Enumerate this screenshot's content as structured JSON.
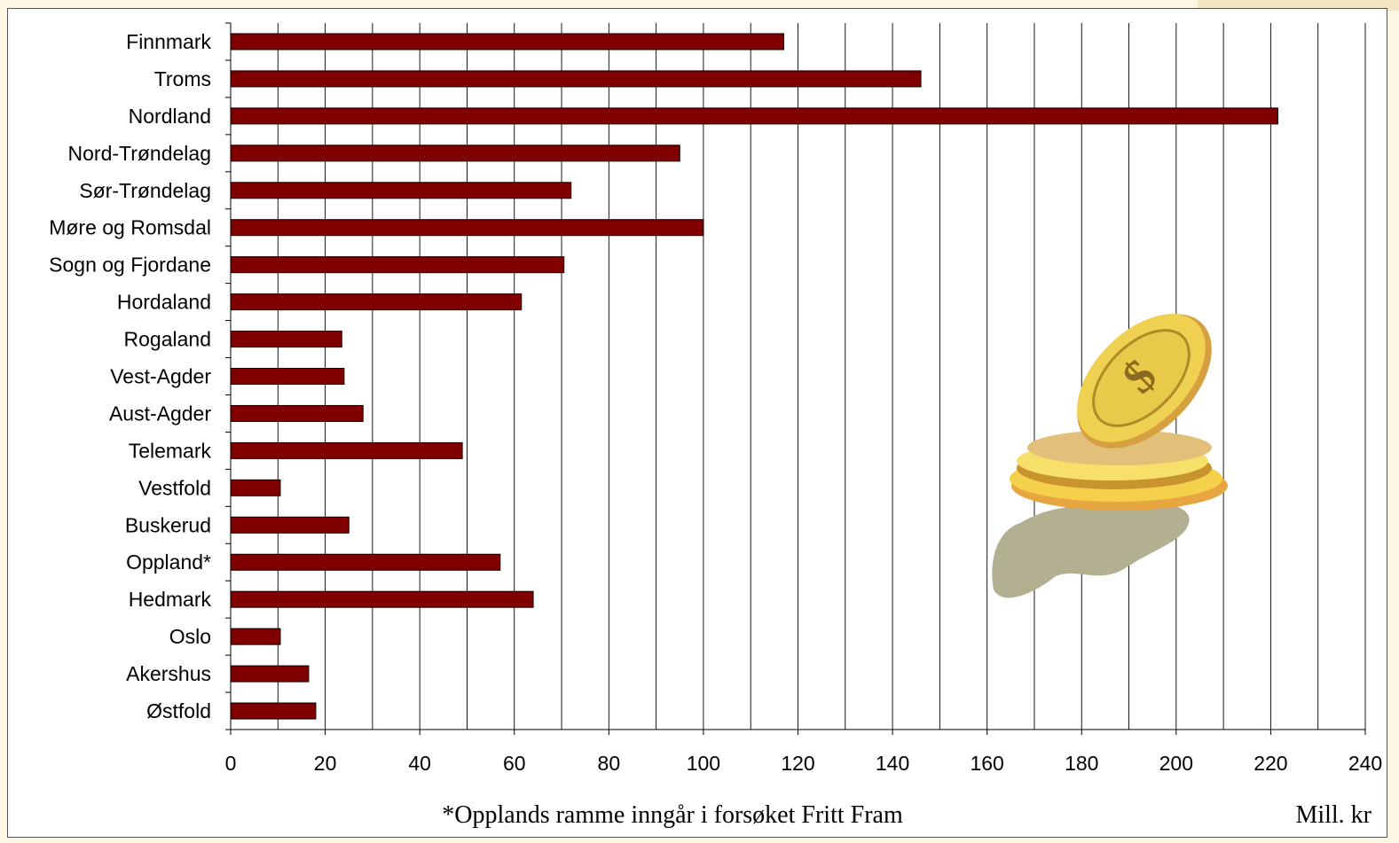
{
  "chart_data": {
    "type": "bar",
    "orientation": "horizontal",
    "categories": [
      "Finnmark",
      "Troms",
      "Nordland",
      "Nord-Trøndelag",
      "Sør-Trøndelag",
      "Møre og Romsdal",
      "Sogn og Fjordane",
      "Hordaland",
      "Rogaland",
      "Vest-Agder",
      "Aust-Agder",
      "Telemark",
      "Vestfold",
      "Buskerud",
      "Oppland*",
      "Hedmark",
      "Oslo",
      "Akershus",
      "Østfold"
    ],
    "values": [
      117,
      146,
      221.5,
      95,
      72,
      100,
      70.5,
      61.5,
      23.5,
      24,
      28,
      49,
      10.5,
      25,
      57,
      64,
      10.5,
      16.5,
      18
    ],
    "xlim": [
      0,
      240
    ],
    "xticks": [
      0,
      20,
      40,
      60,
      80,
      100,
      120,
      140,
      160,
      180,
      200,
      220,
      240
    ],
    "grid": "vertical",
    "bar_color": "#800000",
    "xlabel": "Mill. kr",
    "note": "*Opplands ramme inngår i forsøket Fritt Fram"
  },
  "illustration": {
    "icon": "gold-coins-dollar-icon"
  }
}
